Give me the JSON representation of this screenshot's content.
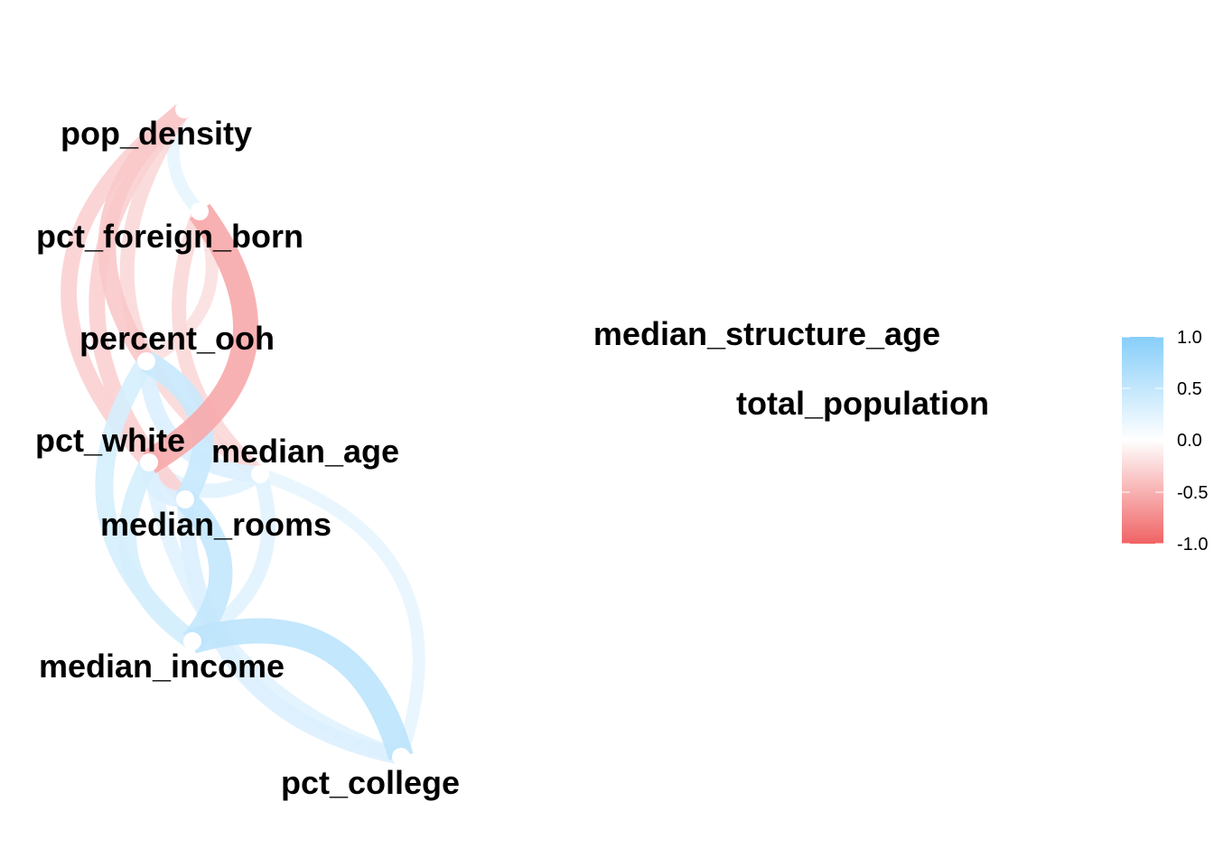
{
  "chart_data": {
    "type": "network",
    "nodes": [
      {
        "id": "pop_density",
        "label": "pop_density"
      },
      {
        "id": "pct_foreign_born",
        "label": "pct_foreign_born"
      },
      {
        "id": "percent_ooh",
        "label": "percent_ooh"
      },
      {
        "id": "pct_white",
        "label": "pct_white"
      },
      {
        "id": "median_age",
        "label": "median_age"
      },
      {
        "id": "median_rooms",
        "label": "median_rooms"
      },
      {
        "id": "median_income",
        "label": "median_income"
      },
      {
        "id": "pct_college",
        "label": "pct_college"
      },
      {
        "id": "median_structure_age",
        "label": "median_structure_age"
      },
      {
        "id": "total_population",
        "label": "total_population"
      }
    ],
    "edges": [
      {
        "from": "pop_density",
        "to": "pct_foreign_born",
        "r": 0.2
      },
      {
        "from": "pop_density",
        "to": "percent_ooh",
        "r": -0.35
      },
      {
        "from": "pop_density",
        "to": "pct_white",
        "r": -0.3
      },
      {
        "from": "pop_density",
        "to": "median_age",
        "r": -0.25
      },
      {
        "from": "pop_density",
        "to": "median_rooms",
        "r": -0.3
      },
      {
        "from": "pct_foreign_born",
        "to": "pct_white",
        "r": -0.55
      },
      {
        "from": "pct_foreign_born",
        "to": "percent_ooh",
        "r": -0.2
      },
      {
        "from": "pct_foreign_born",
        "to": "median_age",
        "r": -0.25
      },
      {
        "from": "percent_ooh",
        "to": "median_rooms",
        "r": 0.45
      },
      {
        "from": "percent_ooh",
        "to": "median_income",
        "r": 0.35
      },
      {
        "from": "percent_ooh",
        "to": "median_age",
        "r": 0.3
      },
      {
        "from": "pct_white",
        "to": "median_age",
        "r": 0.25
      },
      {
        "from": "pct_white",
        "to": "median_income",
        "r": 0.35
      },
      {
        "from": "pct_white",
        "to": "median_rooms",
        "r": 0.3
      },
      {
        "from": "median_rooms",
        "to": "median_income",
        "r": 0.5
      },
      {
        "from": "median_age",
        "to": "median_income",
        "r": 0.25
      },
      {
        "from": "median_age",
        "to": "pct_college",
        "r": 0.2
      },
      {
        "from": "median_income",
        "to": "pct_college",
        "r": 0.55
      },
      {
        "from": "median_rooms",
        "to": "pct_college",
        "r": 0.3
      },
      {
        "from": "pct_white",
        "to": "pct_college",
        "r": 0.25
      }
    ],
    "legend": {
      "ticks": [
        "1.0",
        "0.5",
        "0.0",
        "-0.5",
        "-1.0"
      ],
      "range": [
        -1,
        1
      ],
      "placement": "right",
      "colors": {
        "negative": "#F06364",
        "zero": "#FFFFFF",
        "positive": "#87CEFA"
      }
    }
  }
}
